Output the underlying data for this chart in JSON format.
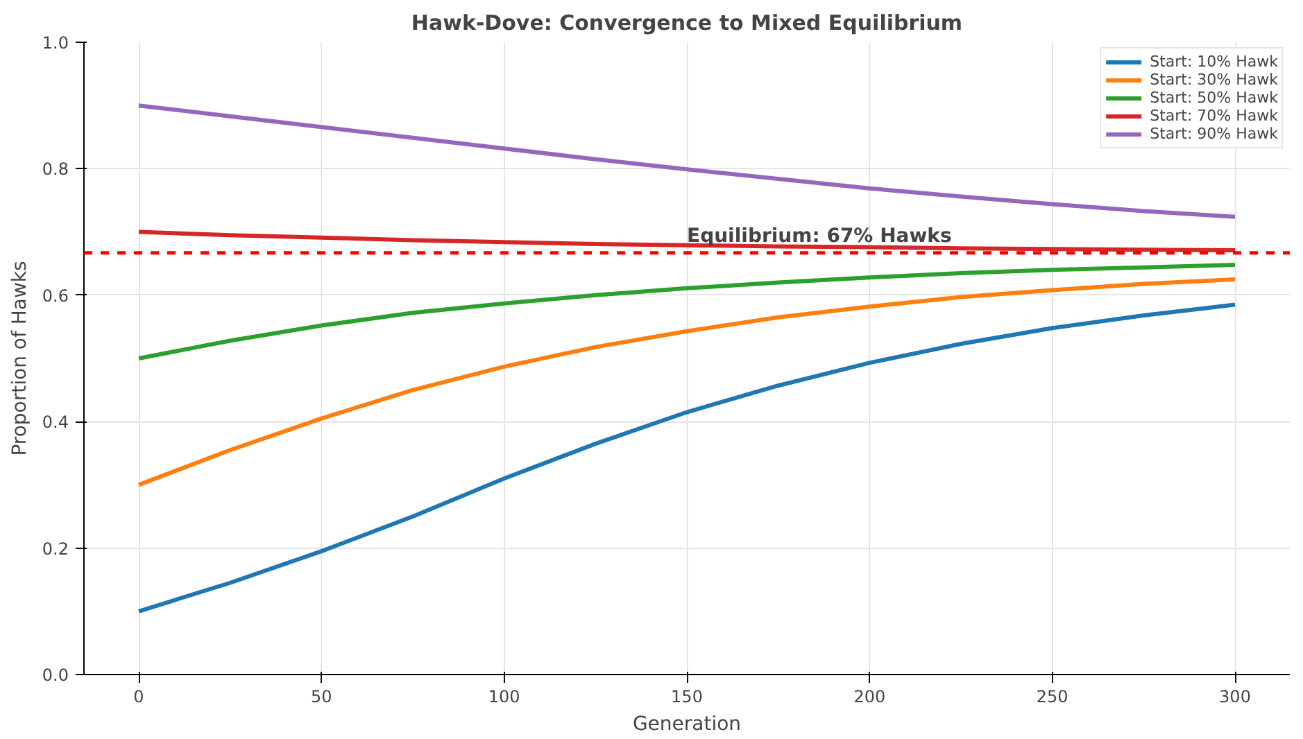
{
  "chart_data": {
    "type": "line",
    "title": "Hawk-Dove: Convergence to Mixed Equilibrium",
    "xlabel": "Generation",
    "ylabel": "Proportion of Hawks",
    "x": [
      0,
      25,
      50,
      75,
      100,
      125,
      150,
      175,
      200,
      225,
      250,
      275,
      300
    ],
    "series": [
      {
        "name": "Start: 10% Hawk",
        "color": "#1f77b4",
        "values": [
          0.1,
          0.145,
          0.195,
          0.25,
          0.31,
          0.365,
          0.415,
          0.457,
          0.493,
          0.523,
          0.548,
          0.568,
          0.585
        ]
      },
      {
        "name": "Start: 30% Hawk",
        "color": "#ff7f0e",
        "values": [
          0.3,
          0.355,
          0.405,
          0.45,
          0.487,
          0.518,
          0.543,
          0.565,
          0.582,
          0.597,
          0.608,
          0.618,
          0.625
        ]
      },
      {
        "name": "Start: 50% Hawk",
        "color": "#2ca02c",
        "values": [
          0.5,
          0.528,
          0.552,
          0.572,
          0.587,
          0.6,
          0.611,
          0.62,
          0.628,
          0.635,
          0.64,
          0.644,
          0.648
        ]
      },
      {
        "name": "Start: 70% Hawk",
        "color": "#d62728",
        "values": [
          0.7,
          0.695,
          0.691,
          0.687,
          0.684,
          0.681,
          0.679,
          0.677,
          0.676,
          0.674,
          0.673,
          0.672,
          0.671
        ]
      },
      {
        "name": "Start: 90% Hawk",
        "color": "#9467bd",
        "values": [
          0.9,
          0.883,
          0.866,
          0.849,
          0.832,
          0.815,
          0.799,
          0.784,
          0.769,
          0.756,
          0.744,
          0.733,
          0.724
        ]
      }
    ],
    "ref_lines": [
      {
        "axis": "y",
        "value": 0.667,
        "color": "#ff0000",
        "line_style": "dashed"
      }
    ],
    "annotations": [
      {
        "text": "Equilibrium: 67% Hawks",
        "x": 150,
        "y": 0.68
      }
    ],
    "xlim": [
      -15,
      315
    ],
    "ylim": [
      0,
      1
    ],
    "xticks": [
      0,
      50,
      100,
      150,
      200,
      250,
      300
    ],
    "yticks": [
      {
        "value": 0,
        "label": "0.0"
      },
      {
        "value": 0.2,
        "label": "0.2"
      },
      {
        "value": 0.4,
        "label": "0.4"
      },
      {
        "value": 0.6,
        "label": "0.6"
      },
      {
        "value": 0.8,
        "label": "0.8"
      },
      {
        "value": 1,
        "label": "1.0"
      }
    ],
    "grid": true,
    "legend": "top right",
    "line_style": "solid"
  }
}
